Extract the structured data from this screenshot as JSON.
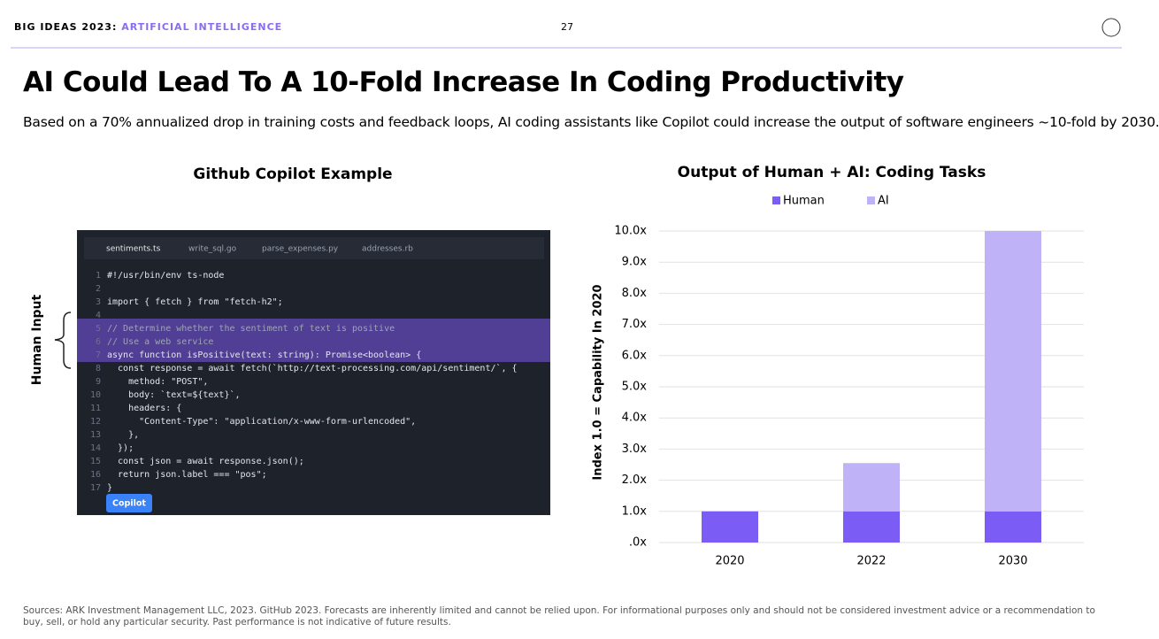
{
  "header": {
    "series_name": "BIG IDEAS 2023:",
    "topic": "ARTIFICIAL INTELLIGENCE",
    "page": "27"
  },
  "title": "AI Could Lead To A 10-Fold Increase In Coding Productivity",
  "subtitle": "Based on a 70% annualized drop in training costs and feedback loops, AI coding assistants like Copilot could increase the output of software engineers ~10-fold by 2030.",
  "example": {
    "title": "Github Copilot Example",
    "side_label": "Human Input",
    "button": "Copilot",
    "tabs": [
      "sentiments.ts",
      "write_sql.go",
      "parse_expenses.py",
      "addresses.rb"
    ],
    "lines": [
      {
        "n": 1,
        "code": "#!/usr/bin/env ts-node"
      },
      {
        "n": 2
      },
      {
        "n": 3,
        "code": "import { fetch } from \"fetch-h2\";"
      },
      {
        "n": 4
      },
      {
        "n": 5,
        "code": "// Determine whether the sentiment of text is positive"
      },
      {
        "n": 6,
        "code": "// Use a web service"
      },
      {
        "n": 7,
        "code": "async function isPositive(text: string): Promise<boolean> {"
      },
      {
        "n": 8,
        "code": "  const response = await fetch(`http://text-processing.com/api/sentiment/`, {"
      },
      {
        "n": 9,
        "code": "    method: \"POST\","
      },
      {
        "n": 10,
        "code": "    body: `text=${text}`,"
      },
      {
        "n": 11,
        "code": "    headers: {"
      },
      {
        "n": 12,
        "code": "      \"Content-Type\": \"application/x-www-form-urlencoded\","
      },
      {
        "n": 13,
        "code": "    },"
      },
      {
        "n": 14,
        "code": "  });"
      },
      {
        "n": 15,
        "code": "  const json = await response.json();"
      },
      {
        "n": 16,
        "code": "  return json.label === \"pos\";"
      },
      {
        "n": 17,
        "code": "}"
      }
    ]
  },
  "chart_data": {
    "type": "stacked-bar",
    "title": "Output of Human + AI: Coding Tasks",
    "y_label": "Index 1.0 = Capability In 2020",
    "categories": [
      "2020",
      "2022",
      "2030"
    ],
    "series": [
      {
        "name": "Human",
        "color": "#7b5cf5",
        "values": [
          1,
          1,
          1
        ]
      },
      {
        "name": "AI",
        "color": "#c0b2f7",
        "values": [
          0,
          1.55,
          9
        ]
      }
    ],
    "ylim": [
      0,
      10
    ],
    "yticks": [
      {
        "value": 0,
        "label": ".0x"
      },
      {
        "value": 1,
        "label": "1.0x"
      },
      {
        "value": 2,
        "label": "2.0x"
      },
      {
        "value": 3,
        "label": "3.0x"
      },
      {
        "value": 4,
        "label": "4.0x"
      },
      {
        "value": 5,
        "label": "5.0x"
      },
      {
        "value": 6,
        "label": "6.0x"
      },
      {
        "value": 7,
        "label": "7.0x"
      },
      {
        "value": 8,
        "label": "8.0x"
      },
      {
        "value": 9,
        "label": "9.0x"
      },
      {
        "value": 10,
        "label": "10.0x"
      }
    ],
    "grid": true,
    "legend": "top"
  },
  "footer": "Sources: ARK Investment Management LLC, 2023. GitHub 2023. Forecasts are inherently limited and cannot be relied upon. For informational purposes only and should not be considered investment advice or a recommendation to buy, sell, or hold any particular security. Past performance is not indicative of future results."
}
